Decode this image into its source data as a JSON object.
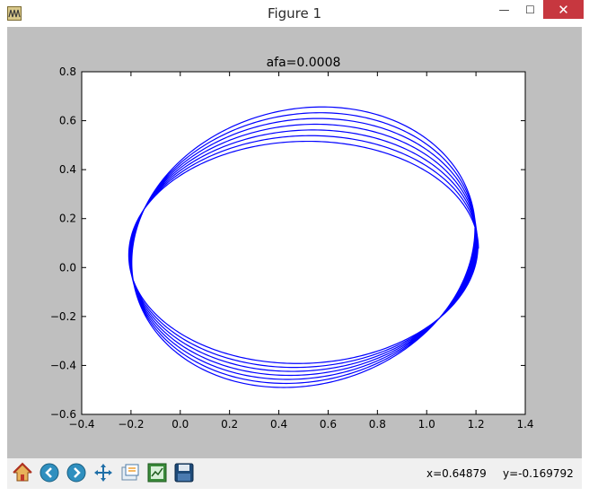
{
  "window": {
    "title": "Figure 1",
    "minimize_label": "—",
    "maximize_label": "☐",
    "close_label": "✕"
  },
  "toolbar": {
    "buttons": [
      {
        "name": "home-button",
        "icon": "home-icon"
      },
      {
        "name": "back-button",
        "icon": "back-arrow-icon"
      },
      {
        "name": "forward-button",
        "icon": "forward-arrow-icon"
      },
      {
        "name": "pan-button",
        "icon": "pan-arrows-icon"
      },
      {
        "name": "zoom-button",
        "icon": "zoom-rect-icon"
      },
      {
        "name": "subplots-button",
        "icon": "subplots-icon"
      },
      {
        "name": "save-button",
        "icon": "floppy-disk-icon"
      }
    ],
    "coord_x": "x=0.64879",
    "coord_y": "y=-0.169792"
  },
  "colors": {
    "line": "#0000ff",
    "figure_bg": "#bfbfbf",
    "axes_bg": "#ffffff"
  },
  "chart_data": {
    "type": "line",
    "title": "afa=0.0008",
    "xlabel": "",
    "ylabel": "",
    "xlim": [
      -0.4,
      1.4
    ],
    "ylim": [
      -0.6,
      0.8
    ],
    "xticks": [
      "−0.4",
      "−0.2",
      "0.0",
      "0.2",
      "0.4",
      "0.6",
      "0.8",
      "1.0",
      "1.2",
      "1.4"
    ],
    "yticks": [
      "−0.6",
      "−0.4",
      "−0.2",
      "0.0",
      "0.2",
      "0.4",
      "0.6",
      "0.8"
    ],
    "grid": false,
    "legend": "none",
    "series": [
      {
        "description_curve": "precessing elliptical orbit, 7 loops",
        "loops": 7,
        "x_min": -0.21,
        "x_max": 1.21,
        "start": [
          0.33,
          0.63
        ],
        "top_y_range": [
          0.51,
          0.67
        ],
        "bottom_y_range": [
          -0.38,
          -0.49
        ]
      }
    ]
  }
}
